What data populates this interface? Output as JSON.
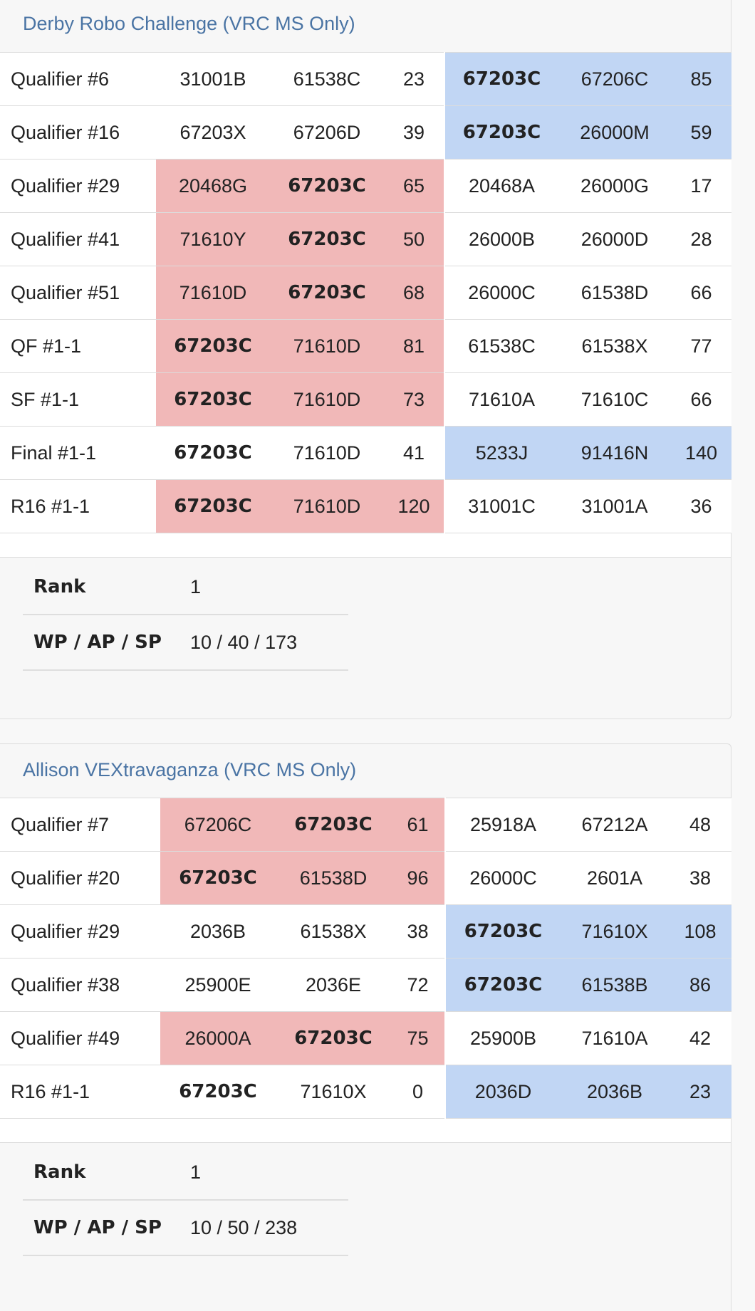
{
  "events": [
    {
      "title": "Derby Robo Challenge (VRC MS Only)",
      "matches": [
        {
          "name": "Qualifier #6",
          "red": [
            "31001B",
            "61538C"
          ],
          "red_score": "23",
          "blue": [
            "67203C",
            "67206C"
          ],
          "blue_score": "85",
          "team_alliance": "blue",
          "winner": "blue",
          "team_pos": 0
        },
        {
          "name": "Qualifier #16",
          "red": [
            "67203X",
            "67206D"
          ],
          "red_score": "39",
          "blue": [
            "67203C",
            "26000M"
          ],
          "blue_score": "59",
          "team_alliance": "blue",
          "winner": "blue",
          "team_pos": 0
        },
        {
          "name": "Qualifier #29",
          "red": [
            "20468G",
            "67203C"
          ],
          "red_score": "65",
          "blue": [
            "20468A",
            "26000G"
          ],
          "blue_score": "17",
          "team_alliance": "red",
          "winner": "red",
          "team_pos": 1
        },
        {
          "name": "Qualifier #41",
          "red": [
            "71610Y",
            "67203C"
          ],
          "red_score": "50",
          "blue": [
            "26000B",
            "26000D"
          ],
          "blue_score": "28",
          "team_alliance": "red",
          "winner": "red",
          "team_pos": 1
        },
        {
          "name": "Qualifier #51",
          "red": [
            "71610D",
            "67203C"
          ],
          "red_score": "68",
          "blue": [
            "26000C",
            "61538D"
          ],
          "blue_score": "66",
          "team_alliance": "red",
          "winner": "red",
          "team_pos": 1
        },
        {
          "name": "QF #1-1",
          "red": [
            "67203C",
            "71610D"
          ],
          "red_score": "81",
          "blue": [
            "61538C",
            "61538X"
          ],
          "blue_score": "77",
          "team_alliance": "red",
          "winner": "red",
          "team_pos": 0
        },
        {
          "name": "SF #1-1",
          "red": [
            "67203C",
            "71610D"
          ],
          "red_score": "73",
          "blue": [
            "71610A",
            "71610C"
          ],
          "blue_score": "66",
          "team_alliance": "red",
          "winner": "red",
          "team_pos": 0
        },
        {
          "name": "Final #1-1",
          "red": [
            "67203C",
            "71610D"
          ],
          "red_score": "41",
          "blue": [
            "5233J",
            "91416N"
          ],
          "blue_score": "140",
          "team_alliance": "red",
          "winner": "blue",
          "team_pos": 0
        },
        {
          "name": "R16 #1-1",
          "red": [
            "67203C",
            "71610D"
          ],
          "red_score": "120",
          "blue": [
            "31001C",
            "31001A"
          ],
          "blue_score": "36",
          "team_alliance": "red",
          "winner": "red",
          "team_pos": 0
        }
      ],
      "stats": [
        {
          "label": "Rank",
          "value": "1"
        },
        {
          "label": "WP / AP / SP",
          "value": "10 / 40 / 173"
        }
      ]
    },
    {
      "title": "Allison VEXtravaganza (VRC MS Only)",
      "matches": [
        {
          "name": "Qualifier #7",
          "red": [
            "67206C",
            "67203C"
          ],
          "red_score": "61",
          "blue": [
            "25918A",
            "67212A"
          ],
          "blue_score": "48",
          "team_alliance": "red",
          "winner": "red",
          "team_pos": 1
        },
        {
          "name": "Qualifier #20",
          "red": [
            "67203C",
            "61538D"
          ],
          "red_score": "96",
          "blue": [
            "26000C",
            "2601A"
          ],
          "blue_score": "38",
          "team_alliance": "red",
          "winner": "red",
          "team_pos": 0
        },
        {
          "name": "Qualifier #29",
          "red": [
            "2036B",
            "61538X"
          ],
          "red_score": "38",
          "blue": [
            "67203C",
            "71610X"
          ],
          "blue_score": "108",
          "team_alliance": "blue",
          "winner": "blue",
          "team_pos": 0
        },
        {
          "name": "Qualifier #38",
          "red": [
            "25900E",
            "2036E"
          ],
          "red_score": "72",
          "blue": [
            "67203C",
            "61538B"
          ],
          "blue_score": "86",
          "team_alliance": "blue",
          "winner": "blue",
          "team_pos": 0
        },
        {
          "name": "Qualifier #49",
          "red": [
            "26000A",
            "67203C"
          ],
          "red_score": "75",
          "blue": [
            "25900B",
            "71610A"
          ],
          "blue_score": "42",
          "team_alliance": "red",
          "winner": "red",
          "team_pos": 1
        },
        {
          "name": "R16 #1-1",
          "red": [
            "67203C",
            "71610X"
          ],
          "red_score": "0",
          "blue": [
            "2036D",
            "2036B"
          ],
          "blue_score": "23",
          "team_alliance": "red",
          "winner": "blue",
          "team_pos": 0
        }
      ],
      "stats": [
        {
          "label": "Rank",
          "value": "1"
        },
        {
          "label": "WP / AP / SP",
          "value": "10 / 50 / 238"
        }
      ]
    }
  ],
  "colors": {
    "red_win": "#f1b8b8",
    "blue_win": "#c1d6f4",
    "title": "#4a74a4"
  }
}
